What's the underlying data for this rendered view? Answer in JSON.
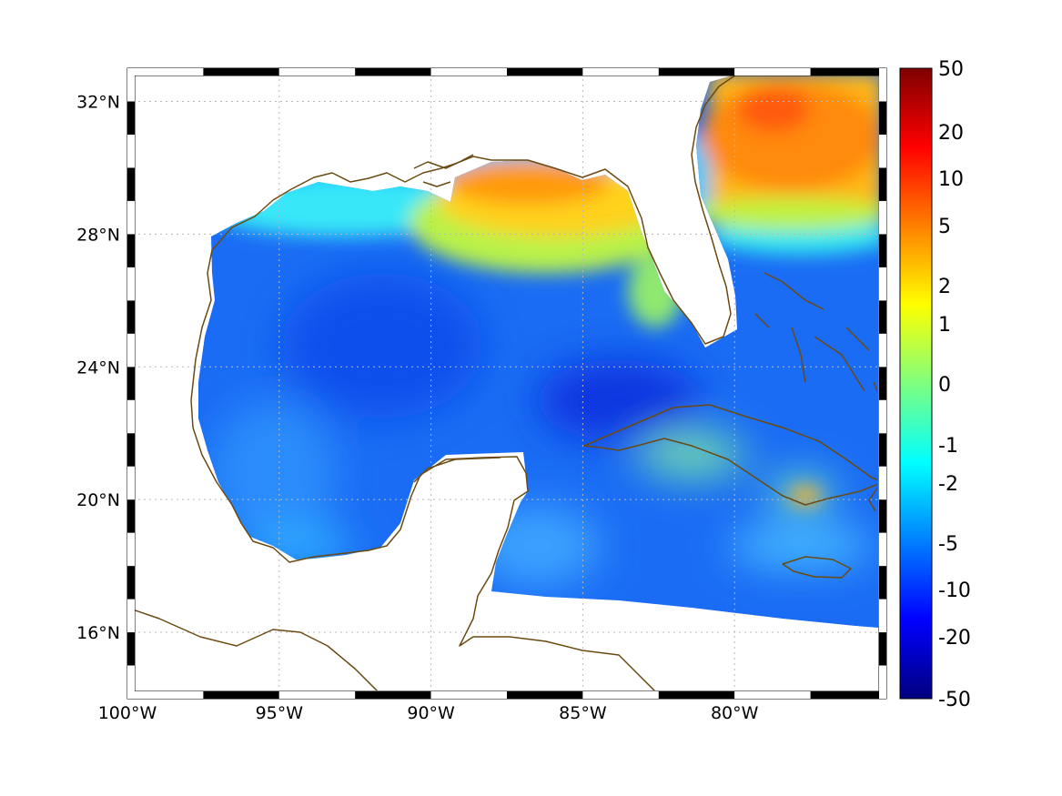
{
  "map": {
    "lon_range": [
      -100,
      -75
    ],
    "lat_range": [
      14,
      33
    ],
    "lon_ticks": [
      {
        "value": -100,
        "label": "100°W"
      },
      {
        "value": -95,
        "label": "95°W"
      },
      {
        "value": -90,
        "label": "90°W"
      },
      {
        "value": -85,
        "label": "85°W"
      },
      {
        "value": -80,
        "label": "80°W"
      }
    ],
    "lat_ticks": [
      {
        "value": 16,
        "label": "16°N"
      },
      {
        "value": 20,
        "label": "20°N"
      },
      {
        "value": 24,
        "label": "24°N"
      },
      {
        "value": 28,
        "label": "28°N"
      },
      {
        "value": 32,
        "label": "32°N"
      }
    ],
    "grid": true,
    "coastline_color": "#6b4a12"
  },
  "colorbar": {
    "colormap": "jet",
    "labels": [
      "50",
      "20",
      "10",
      "5",
      "2",
      "1",
      "0",
      "-1",
      "-2",
      "-5",
      "-10",
      "-20",
      "-50"
    ]
  }
}
